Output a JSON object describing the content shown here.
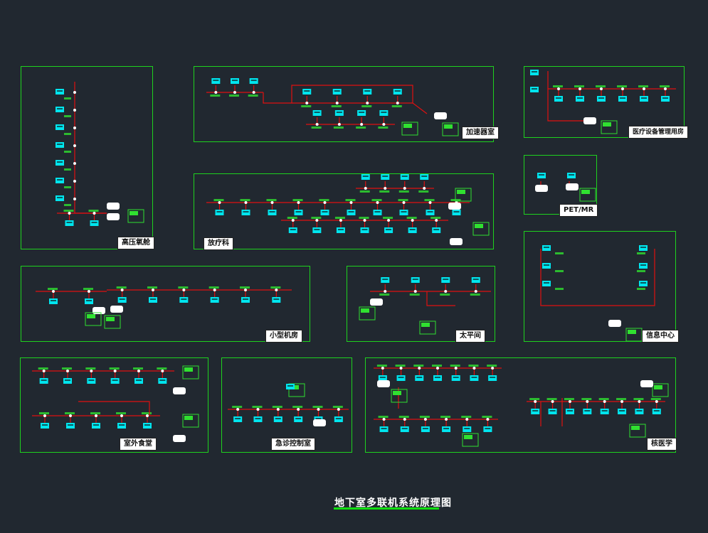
{
  "drawing_title": "地下室多联机系统原理图",
  "colors": {
    "background": "#212830",
    "frame": "#1ed21e",
    "pipe": "#e01010",
    "unit": "#00e5ee",
    "label": "#30e030",
    "note": "#ffffff"
  },
  "panels": [
    {
      "id": "hyperbaric",
      "title": "高压氧舱"
    },
    {
      "id": "accelerator",
      "title": "加速器室"
    },
    {
      "id": "equipment",
      "title": "医疗设备管理用房"
    },
    {
      "id": "petmr",
      "title": "PET/MR"
    },
    {
      "id": "radiotherapy",
      "title": "放疗科"
    },
    {
      "id": "info-center",
      "title": "信息中心"
    },
    {
      "id": "small-room",
      "title": "小型机房"
    },
    {
      "id": "mortuary",
      "title": "太平间"
    },
    {
      "id": "canteen",
      "title": "室外食堂"
    },
    {
      "id": "emergency",
      "title": "急诊控制室"
    },
    {
      "id": "nuclear",
      "title": "核医学"
    }
  ]
}
